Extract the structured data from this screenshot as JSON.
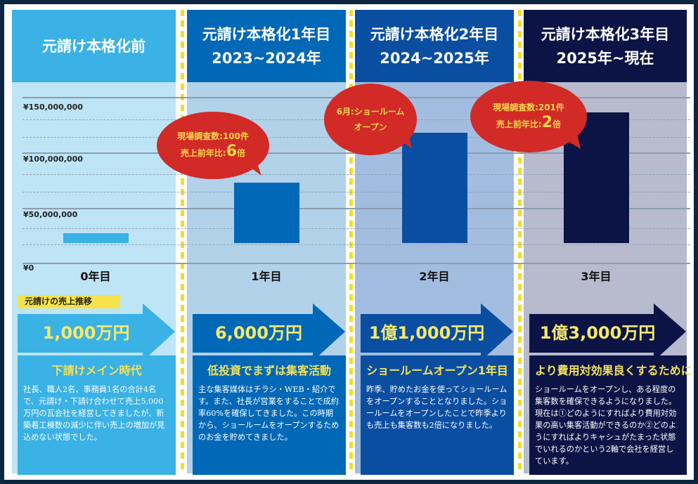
{
  "columns": [
    {
      "header": "元請け本格化前",
      "period": "",
      "year_label": "0年目",
      "sales": "1,000万円",
      "box_title": "下請けメイン時代",
      "box_text": "社長、職人2名、事務員1名の合計4名で、元請け・下請け合わせて売上5,000万円の瓦会社を経営してきましたが、新築着工棟数の減少に伴い売上の増加が見込めない状態でした。",
      "colors": {
        "header": "#3ab2e5",
        "body": "#bde5f6",
        "bar": "#3ab2e5",
        "box": "#3ab2e5"
      }
    },
    {
      "header": "元請け本格化1年目",
      "period": "2023~2024年",
      "year_label": "1年目",
      "sales": "6,000万円",
      "box_title": "低投資でまずは集客活動",
      "box_text": "主な集客媒体はチラシ・WEB・紹介です。また、社長が営業をすることで成約率60%を確保してきました。この時期から、ショールームをオープンするためのお金を貯めてきました。",
      "colors": {
        "header": "#0068b7",
        "body": "#b2d2ea",
        "bar": "#0068b7",
        "box": "#0068b7"
      }
    },
    {
      "header": "元請け本格化2年目",
      "period": "2024~2025年",
      "year_label": "2年目",
      "sales": "1億1,000万円",
      "box_title": "ショールームオープン1年目",
      "box_text": "昨季、貯めたお金を使ってショールームをオープンすることとなりました。ショールームをオープンしたことで昨季よりも売上も集客数も2倍になりました。",
      "colors": {
        "header": "#0a4ea2",
        "body": "#a3bde0",
        "bar": "#0a4ea2",
        "box": "#0a4ea2"
      }
    },
    {
      "header": "元請け本格化3年目",
      "period": "2025年~現在",
      "year_label": "3年目",
      "sales": "1億3,000万円",
      "box_title": "より費用対効果良くするために",
      "box_text": "ショールームをオープンし、ある程度の集客数を確保できるようになりました。現在は①どのようにすればより費用対効果の高い集客活動ができるのか②どのようにすればよりキャシュがたまった状態でいれるのかという2軸で会社を経営しています。",
      "colors": {
        "header": "#0c1446",
        "body": "#b7bbcd",
        "bar": "#0c1446",
        "box": "#0c1446"
      }
    }
  ],
  "sales_tag": "元請けの売上推移",
  "bubbles": [
    {
      "line1": "現場調査数:100件",
      "line2_prefix": "売上前年比:",
      "line2_big": "6",
      "line2_suffix": "倍"
    },
    {
      "line1": "6月:ショールーム",
      "line2": "オープン"
    },
    {
      "line1": "現場調査数:201件",
      "line2_prefix": "売上前年比:",
      "line2_big": "2",
      "line2_suffix": "倍"
    }
  ],
  "chart_data": {
    "type": "bar",
    "categories": [
      "0年目",
      "1年目",
      "2年目",
      "3年目"
    ],
    "values": [
      10000000,
      60000000,
      110000000,
      130000000
    ],
    "ylim": [
      0,
      150000000
    ],
    "yticks": [
      "¥150,000,000",
      "¥100,000,000",
      "¥50,000,000",
      "¥0"
    ],
    "grid": true
  },
  "accent": "#d22a26"
}
